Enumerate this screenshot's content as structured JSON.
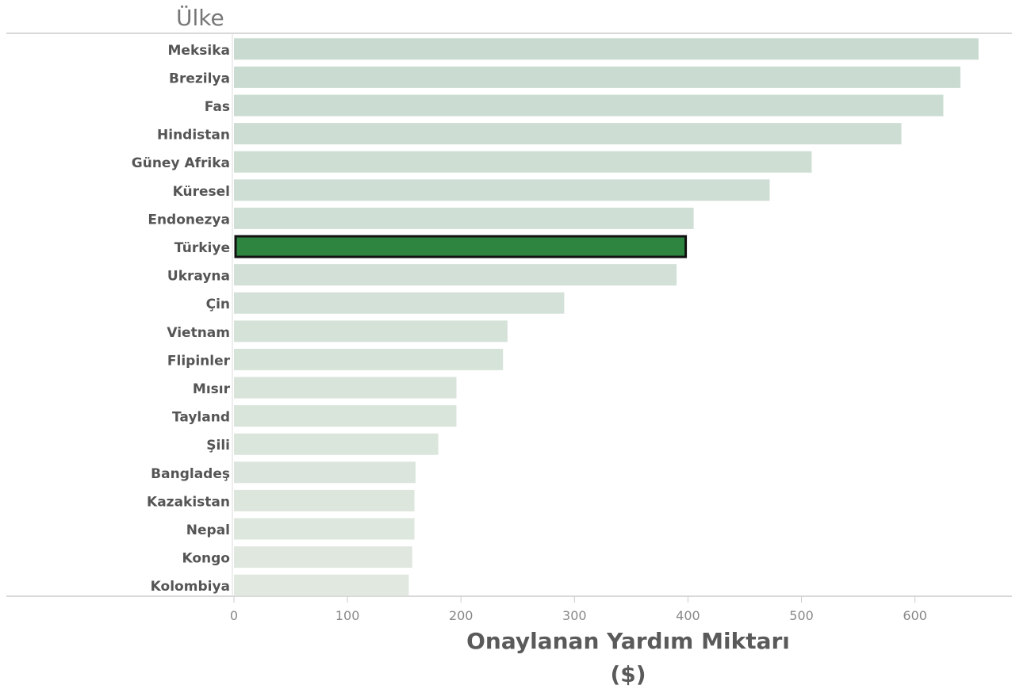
{
  "chart_data": {
    "type": "bar",
    "orientation": "horizontal",
    "header": "Ülke",
    "xlabel_line1": "Onaylanan Yardım Miktarı",
    "xlabel_line2": "($)",
    "xlim": [
      0,
      675
    ],
    "xticks": [
      0,
      100,
      200,
      300,
      400,
      500,
      600
    ],
    "grid": false,
    "highlight": "Türkiye",
    "colors": {
      "highlight_fill": "#2e8540",
      "highlight_border": "#111111",
      "bar_dark": "#c9dbd0",
      "bar_light": "#e0e8e0"
    },
    "categories": [
      "Meksika",
      "Brezilya",
      "Fas",
      "Hindistan",
      "Güney Afrika",
      "Küresel",
      "Endonezya",
      "Türkiye",
      "Ukrayna",
      "Çin",
      "Vietnam",
      "Flipinler",
      "Mısır",
      "Tayland",
      "Şili",
      "Bangladeş",
      "Kazakistan",
      "Nepal",
      "Kongo",
      "Kolombiya"
    ],
    "values": [
      656,
      640,
      625,
      588,
      509,
      472,
      405,
      398,
      390,
      291,
      241,
      237,
      196,
      196,
      180,
      160,
      159,
      159,
      157,
      154
    ]
  }
}
